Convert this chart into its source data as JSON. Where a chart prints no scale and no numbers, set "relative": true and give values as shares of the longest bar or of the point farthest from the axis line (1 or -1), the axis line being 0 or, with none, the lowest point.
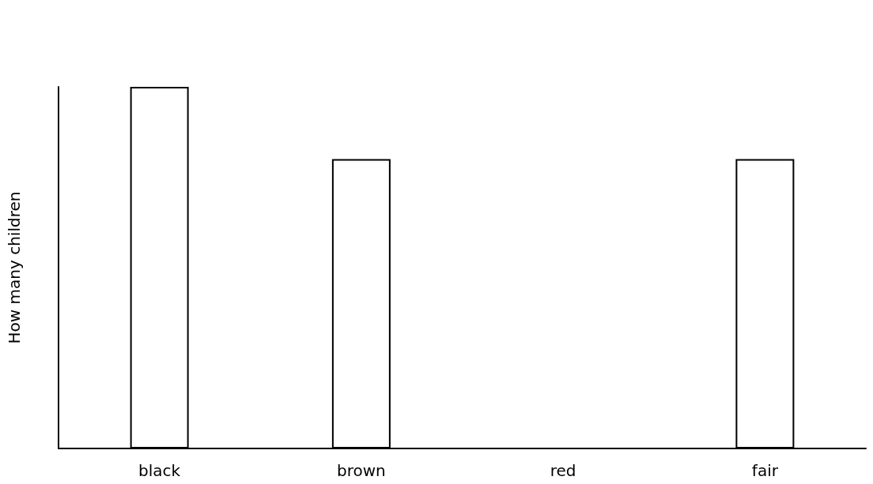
{
  "chart_data": {
    "type": "bar",
    "relative": true,
    "ylabel": "How many children",
    "categories": [
      "black",
      "brown",
      "red",
      "fair"
    ],
    "values": [
      1,
      0.8,
      0,
      0.8
    ],
    "color": "#000000"
  }
}
